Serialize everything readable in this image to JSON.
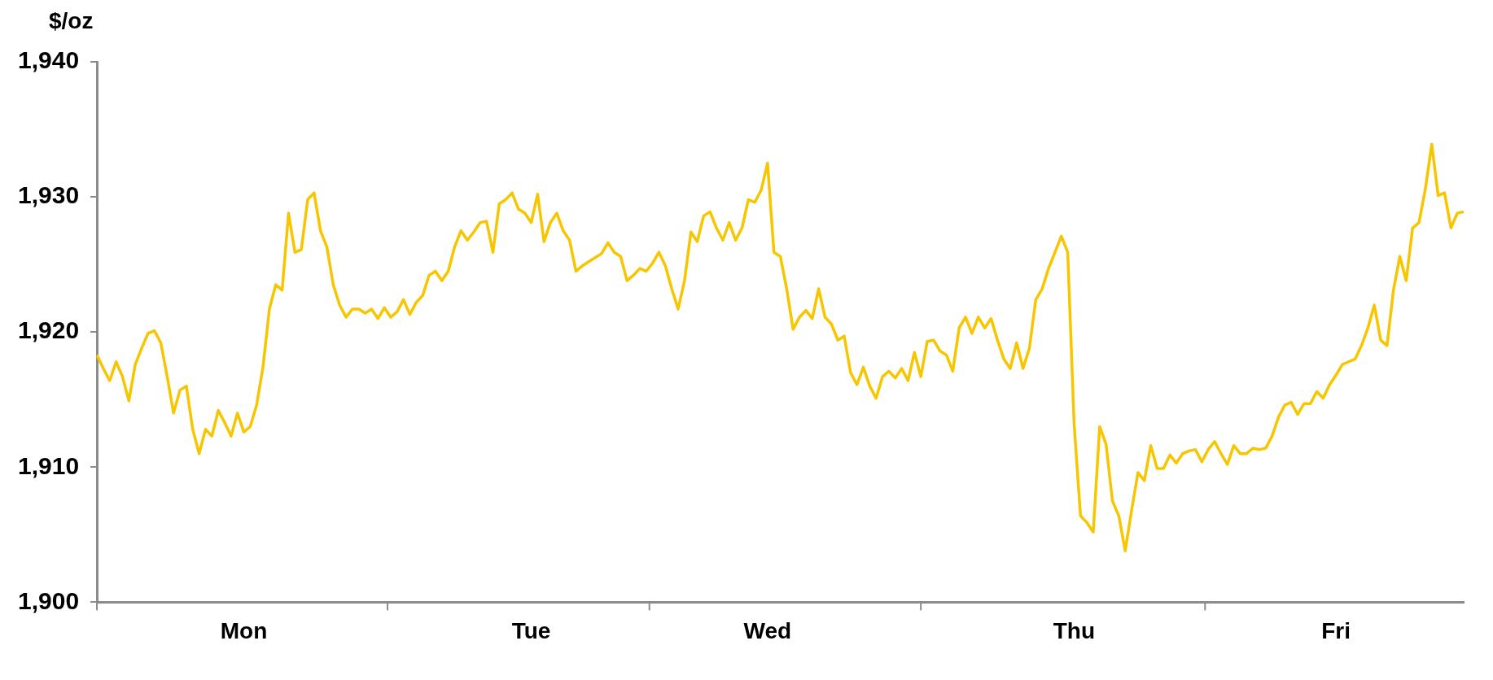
{
  "chart_data": {
    "type": "line",
    "ylabel": "$/oz",
    "color": "#f7c600",
    "marker": "none",
    "line_style": "solid",
    "grid": false,
    "legend": false,
    "categories": [
      null,
      null,
      null,
      null,
      null,
      null,
      null,
      null,
      null,
      null,
      null,
      null,
      null,
      null,
      null,
      null,
      null,
      null,
      null,
      null,
      null,
      null,
      null,
      "Mon",
      null,
      null,
      null,
      null,
      null,
      null,
      null,
      null,
      null,
      null,
      null,
      null,
      null,
      null,
      null,
      null,
      null,
      null,
      null,
      null,
      null,
      null,
      null,
      null,
      null,
      null,
      null,
      null,
      null,
      null,
      null,
      null,
      null,
      null,
      null,
      null,
      null,
      null,
      null,
      null,
      null,
      null,
      null,
      null,
      "Tue",
      null,
      null,
      null,
      null,
      null,
      null,
      null,
      null,
      null,
      null,
      null,
      null,
      null,
      null,
      null,
      null,
      null,
      null,
      null,
      null,
      null,
      null,
      null,
      null,
      null,
      null,
      null,
      null,
      null,
      null,
      null,
      null,
      null,
      null,
      null,
      null,
      "Wed",
      null,
      null,
      null,
      null,
      null,
      null,
      null,
      null,
      null,
      null,
      null,
      null,
      null,
      null,
      null,
      null,
      null,
      null,
      null,
      null,
      null,
      null,
      null,
      null,
      null,
      null,
      null,
      null,
      null,
      null,
      null,
      null,
      null,
      null,
      null,
      null,
      null,
      null,
      null,
      null,
      null,
      null,
      null,
      null,
      null,
      null,
      null,
      "Thu",
      null,
      null,
      null,
      null,
      null,
      null,
      null,
      null,
      null,
      null,
      null,
      null,
      null,
      null,
      null,
      null,
      null,
      null,
      null,
      null,
      null,
      null,
      null,
      null,
      null,
      null,
      null,
      null,
      null,
      null,
      null,
      null,
      null,
      null,
      null,
      null,
      null,
      null,
      null,
      null,
      "Fri",
      null,
      null,
      null,
      null,
      null,
      null,
      null,
      null,
      null,
      null,
      null,
      null,
      null,
      null,
      null,
      null,
      null,
      null,
      null,
      null
    ],
    "ylim": [
      1900,
      1940
    ],
    "yticks": [
      {
        "value": 1900,
        "label": "1,900"
      },
      {
        "value": 1910,
        "label": "1,910"
      },
      {
        "value": 1920,
        "label": "1,920"
      },
      {
        "value": 1930,
        "label": "1,930"
      },
      {
        "value": 1940,
        "label": "1,940"
      }
    ],
    "values": [
      1918.3,
      1917.3,
      1916.4,
      1917.8,
      1916.7,
      1914.9,
      1917.6,
      1918.8,
      1919.9,
      1920.1,
      1919.2,
      1916.7,
      1914.0,
      1915.7,
      1916.0,
      1912.8,
      1911.0,
      1912.8,
      1912.3,
      1914.2,
      1913.3,
      1912.3,
      1914.0,
      1912.6,
      1913.0,
      1914.6,
      1917.4,
      1921.7,
      1923.5,
      1923.1,
      1928.8,
      1925.9,
      1926.1,
      1929.8,
      1930.3,
      1927.5,
      1926.3,
      1923.5,
      1922.0,
      1921.1,
      1921.7,
      1921.7,
      1921.4,
      1921.7,
      1921.0,
      1921.8,
      1921.1,
      1921.5,
      1922.4,
      1921.3,
      1922.2,
      1922.7,
      1924.2,
      1924.5,
      1923.8,
      1924.5,
      1926.3,
      1927.5,
      1926.8,
      1927.4,
      1928.1,
      1928.2,
      1925.9,
      1929.5,
      1929.8,
      1930.3,
      1929.1,
      1928.8,
      1928.1,
      1930.2,
      1926.7,
      1928.1,
      1928.8,
      1927.5,
      1926.8,
      1924.5,
      1924.9,
      1925.2,
      1925.5,
      1925.8,
      1926.6,
      1925.9,
      1925.6,
      1923.8,
      1924.2,
      1924.7,
      1924.5,
      1925.1,
      1925.9,
      1924.9,
      1923.2,
      1921.7,
      1923.8,
      1927.4,
      1926.7,
      1928.6,
      1928.9,
      1927.7,
      1926.8,
      1928.1,
      1926.8,
      1927.7,
      1929.8,
      1929.6,
      1930.5,
      1932.5,
      1925.9,
      1925.6,
      1923.2,
      1920.2,
      1921.1,
      1921.6,
      1921.0,
      1923.2,
      1921.1,
      1920.6,
      1919.4,
      1919.7,
      1917.0,
      1916.1,
      1917.4,
      1916.0,
      1915.1,
      1916.7,
      1917.1,
      1916.6,
      1917.3,
      1916.4,
      1918.5,
      1916.7,
      1919.3,
      1919.4,
      1918.6,
      1918.3,
      1917.1,
      1920.3,
      1921.1,
      1919.9,
      1921.1,
      1920.3,
      1921.0,
      1919.4,
      1918.0,
      1917.3,
      1919.2,
      1917.3,
      1918.8,
      1922.4,
      1923.2,
      1924.7,
      1925.9,
      1927.1,
      1925.9,
      1913.2,
      1906.4,
      1905.9,
      1905.2,
      1913.0,
      1911.7,
      1907.5,
      1906.4,
      1903.8,
      1906.8,
      1909.6,
      1909.0,
      1911.6,
      1909.9,
      1909.9,
      1910.9,
      1910.3,
      1911.0,
      1911.2,
      1911.3,
      1910.4,
      1911.3,
      1911.9,
      1911.0,
      1910.2,
      1911.6,
      1911.0,
      1911.0,
      1911.4,
      1911.3,
      1911.4,
      1912.3,
      1913.7,
      1914.6,
      1914.8,
      1913.9,
      1914.7,
      1914.7,
      1915.6,
      1915.1,
      1916.1,
      1916.8,
      1917.6,
      1917.8,
      1918.0,
      1919.0,
      1920.3,
      1922.0,
      1919.4,
      1919.0,
      1923.1,
      1925.6,
      1923.8,
      1927.7,
      1928.1,
      1930.6,
      1933.9,
      1930.1,
      1930.3,
      1927.7,
      1928.8,
      1928.9
    ]
  }
}
